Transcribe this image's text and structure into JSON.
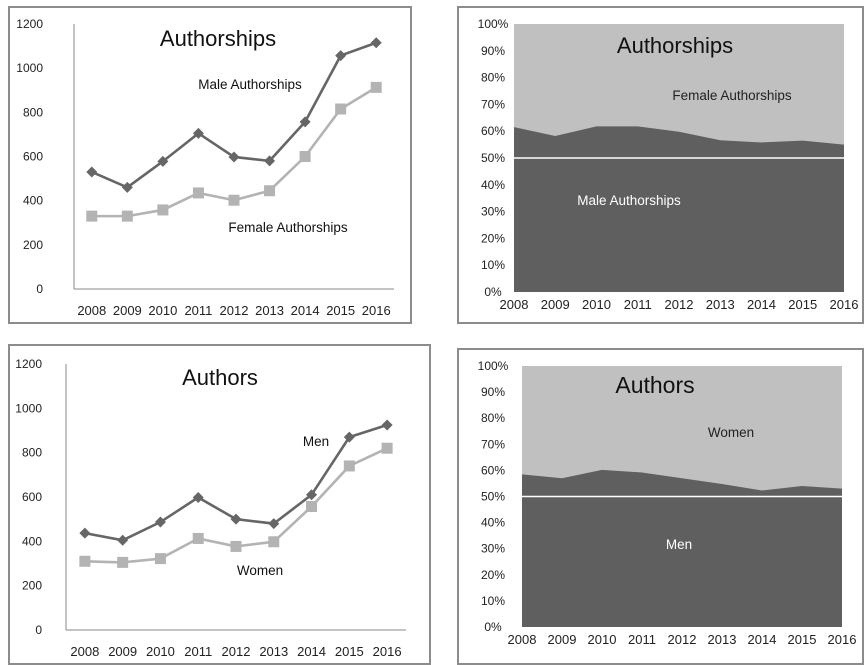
{
  "chart_data": [
    {
      "type": "line",
      "title": "Authorships",
      "categories": [
        "2008",
        "2009",
        "2010",
        "2011",
        "2012",
        "2013",
        "2014",
        "2015",
        "2016"
      ],
      "ylim": [
        0,
        1200
      ],
      "yticks": [
        "0",
        "200",
        "400",
        "600",
        "800",
        "1000",
        "1200"
      ],
      "grid": false,
      "series": [
        {
          "name": "Male Authorships",
          "values": [
            530,
            460,
            578,
            705,
            598,
            580,
            757,
            1057,
            1115
          ],
          "color": "#666666",
          "marker": "diamond"
        },
        {
          "name": "Female Authorships",
          "values": [
            330,
            330,
            358,
            435,
            402,
            445,
            600,
            815,
            913
          ],
          "color": "#b3b3b3",
          "marker": "square"
        }
      ]
    },
    {
      "type": "area",
      "stacked_percent": true,
      "title": "Authorships",
      "categories": [
        "2008",
        "2009",
        "2010",
        "2011",
        "2012",
        "2013",
        "2014",
        "2015",
        "2016"
      ],
      "ylim": [
        0,
        100
      ],
      "yticks": [
        "0%",
        "10%",
        "20%",
        "30%",
        "40%",
        "50%",
        "60%",
        "70%",
        "80%",
        "90%",
        "100%"
      ],
      "reference_line": 50,
      "series": [
        {
          "name": "Male Authorships",
          "values": [
            61.5,
            58.2,
            61.8,
            61.8,
            59.8,
            56.6,
            55.8,
            56.5,
            55.0
          ],
          "color": "#5f5f5f"
        },
        {
          "name": "Female Authorships",
          "values": [
            38.5,
            41.8,
            38.2,
            38.2,
            40.2,
            43.4,
            44.2,
            43.5,
            45.0
          ],
          "color": "#c0c0c0"
        }
      ]
    },
    {
      "type": "line",
      "title": "Authors",
      "categories": [
        "2008",
        "2009",
        "2010",
        "2011",
        "2012",
        "2013",
        "2014",
        "2015",
        "2016"
      ],
      "ylim": [
        0,
        1200
      ],
      "yticks": [
        "0",
        "200",
        "400",
        "600",
        "800",
        "1000",
        "1200"
      ],
      "grid": false,
      "series": [
        {
          "name": "Men",
          "values": [
            437,
            405,
            487,
            598,
            500,
            480,
            610,
            870,
            925
          ],
          "color": "#666666",
          "marker": "diamond"
        },
        {
          "name": "Women",
          "values": [
            310,
            305,
            322,
            413,
            377,
            398,
            557,
            740,
            820
          ],
          "color": "#b3b3b3",
          "marker": "square"
        }
      ]
    },
    {
      "type": "area",
      "stacked_percent": true,
      "title": "Authors",
      "categories": [
        "2008",
        "2009",
        "2010",
        "2011",
        "2012",
        "2013",
        "2014",
        "2015",
        "2016"
      ],
      "ylim": [
        0,
        100
      ],
      "yticks": [
        "0%",
        "10%",
        "20%",
        "30%",
        "40%",
        "50%",
        "60%",
        "70%",
        "80%",
        "90%",
        "100%"
      ],
      "reference_line": 50,
      "series": [
        {
          "name": "Men",
          "values": [
            58.5,
            57.0,
            60.2,
            59.2,
            57.0,
            54.8,
            52.3,
            54.0,
            53.0
          ],
          "color": "#5f5f5f"
        },
        {
          "name": "Women",
          "values": [
            41.5,
            43.0,
            39.8,
            40.8,
            43.0,
            45.2,
            47.7,
            46.0,
            47.0
          ],
          "color": "#c0c0c0"
        }
      ]
    }
  ]
}
